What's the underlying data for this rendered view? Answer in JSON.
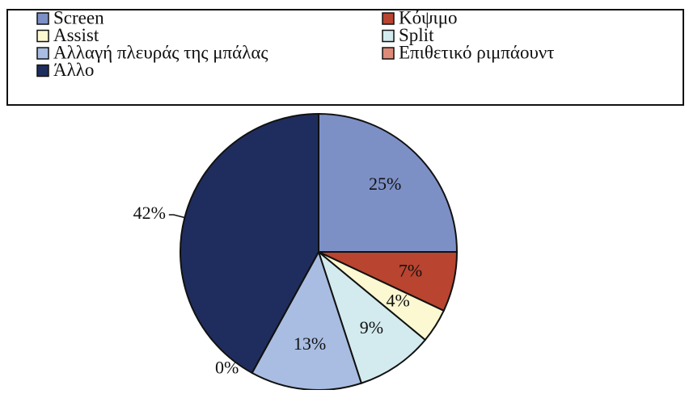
{
  "chart_data": {
    "type": "pie",
    "categories": [
      "Screen",
      "Κόψιμο",
      "Assist",
      "Split",
      "Αλλαγή πλευράς της μπάλας",
      "Επιθετικό ριμπάουντ",
      "Άλλο"
    ],
    "values": [
      25,
      7,
      4,
      9,
      13,
      0,
      42
    ],
    "value_labels": [
      "25%",
      "7%",
      "4%",
      "9%",
      "13%",
      "0%",
      "42%"
    ],
    "colors": [
      "#7d90c6",
      "#b9442f",
      "#fbf8d2",
      "#d3ebee",
      "#a9bde2",
      "#de8a79",
      "#1f2d5e"
    ],
    "legend": "top"
  }
}
